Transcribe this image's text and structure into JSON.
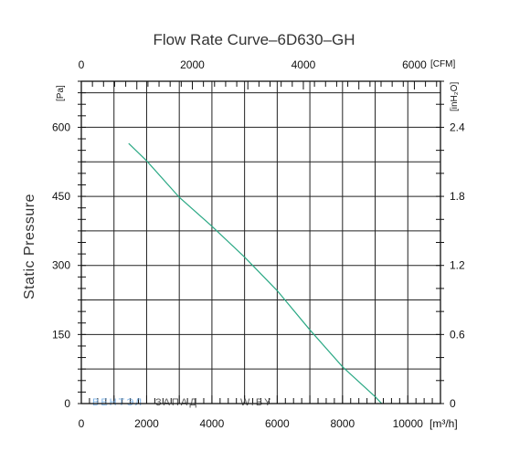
{
  "chart_data": {
    "type": "line",
    "title": "Flow Rate Curve–6D630–GH",
    "ylabel": "Static Pressure",
    "x_bottom": {
      "unit": "[m³/h]",
      "range": [
        0,
        11000
      ],
      "ticks": [
        0,
        2000,
        4000,
        6000,
        8000,
        10000
      ],
      "grid_step": 1000
    },
    "x_top": {
      "unit": "[CFM]",
      "range": [
        0,
        6470
      ],
      "ticks": [
        0,
        2000,
        4000,
        6000
      ]
    },
    "y_left": {
      "unit": "[Pa]",
      "range": [
        0,
        700
      ],
      "ticks": [
        0,
        150,
        300,
        450,
        600
      ],
      "grid_step": 75
    },
    "y_right": {
      "unit": "[inH₂O]",
      "ticks": [
        0,
        0.6,
        1.2,
        1.8,
        2.4
      ]
    },
    "grid": true,
    "series": [
      {
        "color": "#2aa884",
        "x": [
          1450,
          2000,
          3000,
          4000,
          5000,
          6000,
          7000,
          8000,
          9000,
          9200
        ],
        "y": [
          565,
          527,
          448,
          385,
          318,
          245,
          160,
          80,
          15,
          0
        ]
      }
    ],
    "watermark": {
      "part1": "ВЕНТЭЛ",
      "part2": "ЗАПАД",
      "part3": "W.BY"
    }
  }
}
